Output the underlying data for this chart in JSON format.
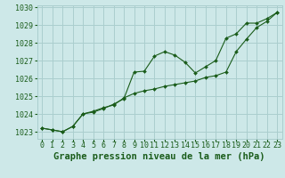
{
  "title": "Graphe pression niveau de la mer (hPa)",
  "background_color": "#cde8e8",
  "grid_color": "#aacece",
  "line_color": "#1a5c1a",
  "xlim": [
    -0.5,
    23.5
  ],
  "ylim": [
    1022.6,
    1030.1
  ],
  "ytick_top": 1030,
  "yticks": [
    1023,
    1024,
    1025,
    1026,
    1027,
    1028,
    1029,
    1030
  ],
  "xticks": [
    0,
    1,
    2,
    3,
    4,
    5,
    6,
    7,
    8,
    9,
    10,
    11,
    12,
    13,
    14,
    15,
    16,
    17,
    18,
    19,
    20,
    21,
    22,
    23
  ],
  "series1_x": [
    0,
    1,
    2,
    3,
    4,
    5,
    6,
    7,
    8,
    9,
    10,
    11,
    12,
    13,
    14,
    15,
    16,
    17,
    18,
    19,
    20,
    21,
    22,
    23
  ],
  "series1_y": [
    1023.2,
    1023.1,
    1023.0,
    1023.3,
    1024.0,
    1024.1,
    1024.3,
    1024.55,
    1024.85,
    1026.35,
    1026.4,
    1027.25,
    1027.5,
    1027.3,
    1026.9,
    1026.3,
    1026.65,
    1027.0,
    1028.25,
    1028.5,
    1029.1,
    1029.1,
    1029.35,
    1029.7
  ],
  "series2_x": [
    0,
    1,
    2,
    3,
    4,
    5,
    6,
    7,
    8,
    9,
    10,
    11,
    12,
    13,
    14,
    15,
    16,
    17,
    18,
    19,
    20,
    21,
    22,
    23
  ],
  "series2_y": [
    1023.2,
    1023.1,
    1023.0,
    1023.3,
    1024.0,
    1024.15,
    1024.35,
    1024.5,
    1024.9,
    1025.15,
    1025.3,
    1025.4,
    1025.55,
    1025.65,
    1025.75,
    1025.85,
    1026.05,
    1026.15,
    1026.35,
    1027.5,
    1028.2,
    1028.85,
    1029.2,
    1029.7
  ],
  "title_fontsize": 7.5,
  "tick_fontsize": 6.0
}
